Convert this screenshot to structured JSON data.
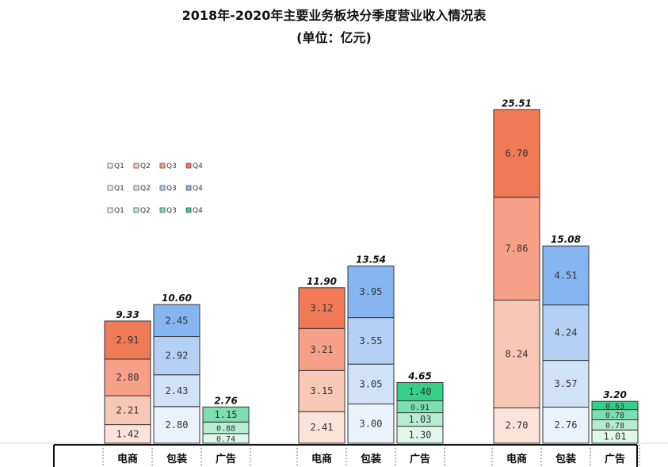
{
  "chart_data": {
    "type": "bar",
    "stacked": true,
    "title": "2018年-2020年主要业务板块分季度营业收入情况表",
    "subtitle": "(单位：亿元)",
    "xlabel": "",
    "ylabel": "",
    "ylim": [
      0,
      28
    ],
    "grid": false,
    "legend_position": "top-left",
    "quarters": [
      "Q1",
      "Q2",
      "Q3",
      "Q4"
    ],
    "segments": [
      "电商",
      "包装",
      "广告"
    ],
    "groups": [
      {
        "bars": [
          {
            "category": "电商",
            "values": [
              1.42,
              2.21,
              2.8,
              2.91
            ],
            "total": "9.33"
          },
          {
            "category": "包装",
            "values": [
              2.8,
              2.43,
              2.92,
              2.45
            ],
            "total": "10.60"
          },
          {
            "category": "广告",
            "values": [
              0.74,
              0.88,
              1.15
            ],
            "total": "2.76"
          }
        ]
      },
      {
        "bars": [
          {
            "category": "电商",
            "values": [
              2.41,
              3.15,
              3.21,
              3.12
            ],
            "total": "11.90"
          },
          {
            "category": "包装",
            "values": [
              3.0,
              3.05,
              3.55,
              3.95
            ],
            "total": "13.54"
          },
          {
            "category": "广告",
            "values": [
              1.3,
              1.03,
              0.91,
              1.4
            ],
            "total": "4.65"
          }
        ]
      },
      {
        "bars": [
          {
            "category": "电商",
            "values": [
              2.7,
              8.24,
              7.86,
              6.7
            ],
            "total": "25.51"
          },
          {
            "category": "包装",
            "values": [
              2.76,
              3.57,
              4.24,
              4.51
            ],
            "total": "15.08"
          },
          {
            "category": "广告",
            "values": [
              1.01,
              0.78,
              0.78,
              0.63
            ],
            "total": "3.20"
          }
        ]
      }
    ],
    "colors": {
      "电商": [
        "#fbe3da",
        "#f9c7b5",
        "#f6a088",
        "#f07a56"
      ],
      "包装": [
        "#eaf2fc",
        "#d0e2f8",
        "#b4d1f5",
        "#86b6f1"
      ],
      "广告": [
        "#e0f7ec",
        "#b6ecd2",
        "#7ddfb0",
        "#35d088"
      ]
    },
    "legend": [
      {
        "series": "电商",
        "labels": [
          "Q1",
          "Q2",
          "Q3",
          "Q4"
        ]
      },
      {
        "series": "包装",
        "labels": [
          "Q1",
          "Q2",
          "Q3",
          "Q4"
        ]
      },
      {
        "series": "广告",
        "labels": [
          "Q1",
          "Q2",
          "Q3",
          "Q4"
        ]
      }
    ]
  }
}
